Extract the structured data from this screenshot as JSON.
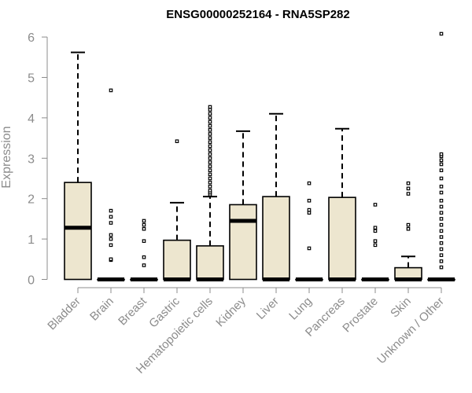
{
  "chart_data": {
    "type": "boxplot",
    "title": "ENSG00000252164 - RNA5SP282",
    "xlabel": "",
    "ylabel": "Expression",
    "ylim": [
      0,
      6.2
    ],
    "yticks": [
      "0",
      "1",
      "2",
      "3",
      "4",
      "5",
      "6"
    ],
    "box_fill": "#ede6cf",
    "categories": [
      "Bladder",
      "Brain",
      "Breast",
      "Gastric",
      "Hematopoietic cells",
      "Kidney",
      "Liver",
      "Lung",
      "Pancreas",
      "Prostate",
      "Skin",
      "Unknown / Other"
    ],
    "series": [
      {
        "name": "Bladder",
        "q1": 0,
        "median": 1.28,
        "q3": 2.4,
        "whisker_low": 0,
        "whisker_high": 5.62,
        "outliers": []
      },
      {
        "name": "Brain",
        "q1": 0,
        "median": 0,
        "q3": 0,
        "whisker_low": 0,
        "whisker_high": 0,
        "outliers": [
          0.48,
          0.5,
          0.85,
          1.0,
          1.1,
          1.4,
          1.55,
          1.7,
          4.68
        ]
      },
      {
        "name": "Breast",
        "q1": 0,
        "median": 0,
        "q3": 0,
        "whisker_low": 0,
        "whisker_high": 0,
        "outliers": [
          0.35,
          0.55,
          0.95,
          1.25,
          1.35,
          1.45
        ]
      },
      {
        "name": "Gastric",
        "q1": 0,
        "median": 0,
        "q3": 0.97,
        "whisker_low": 0,
        "whisker_high": 1.9,
        "outliers": [
          3.42
        ]
      },
      {
        "name": "Hematopoietic cells",
        "q1": 0,
        "median": 0,
        "q3": 0.83,
        "whisker_low": 0,
        "whisker_high": 2.05,
        "outliers": [
          2.1,
          2.15,
          2.2,
          2.3,
          2.4,
          2.5,
          2.6,
          2.7,
          2.8,
          2.9,
          3.0,
          3.1,
          3.2,
          3.3,
          3.4,
          3.5,
          3.6,
          3.7,
          3.8,
          3.9,
          4.0,
          4.1,
          4.2,
          4.27
        ]
      },
      {
        "name": "Kidney",
        "q1": 0,
        "median": 1.45,
        "q3": 1.85,
        "whisker_low": 0,
        "whisker_high": 3.67,
        "outliers": []
      },
      {
        "name": "Liver",
        "q1": 0,
        "median": 0,
        "q3": 2.05,
        "whisker_low": 0,
        "whisker_high": 4.1,
        "outliers": []
      },
      {
        "name": "Lung",
        "q1": 0,
        "median": 0,
        "q3": 0,
        "whisker_low": 0,
        "whisker_high": 0,
        "outliers": [
          0.77,
          1.65,
          1.72,
          1.95,
          2.38
        ]
      },
      {
        "name": "Pancreas",
        "q1": 0,
        "median": 0,
        "q3": 2.03,
        "whisker_low": 0,
        "whisker_high": 3.73,
        "outliers": []
      },
      {
        "name": "Prostate",
        "q1": 0,
        "median": 0,
        "q3": 0,
        "whisker_low": 0,
        "whisker_high": 0,
        "outliers": [
          0.85,
          0.95,
          1.2,
          1.28,
          1.85
        ]
      },
      {
        "name": "Skin",
        "q1": 0,
        "median": 0,
        "q3": 0.29,
        "whisker_low": 0,
        "whisker_high": 0.57,
        "outliers": [
          1.25,
          1.35,
          2.12,
          2.25,
          2.38
        ]
      },
      {
        "name": "Unknown / Other",
        "q1": 0,
        "median": 0,
        "q3": 0,
        "whisker_low": 0,
        "whisker_high": 0,
        "outliers": [
          0.3,
          0.45,
          0.6,
          0.75,
          0.9,
          1.05,
          1.2,
          1.35,
          1.5,
          1.65,
          1.8,
          1.95,
          2.15,
          2.3,
          2.5,
          2.7,
          2.85,
          2.95,
          3.05,
          3.1,
          6.08
        ]
      }
    ]
  }
}
